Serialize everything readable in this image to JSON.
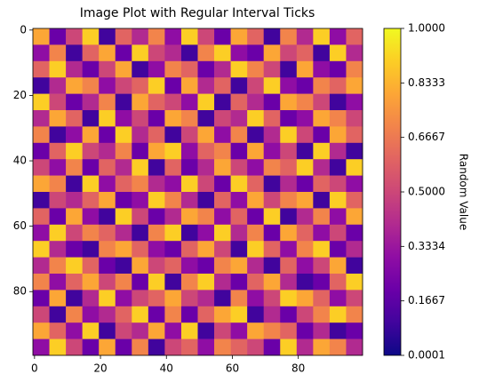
{
  "chart_data": {
    "type": "heatmap",
    "title": "Image Plot with Regular Interval Ticks",
    "colormap": "plasma",
    "colorbar_label": "Random Value",
    "xlim": [
      -0.5,
      99.5
    ],
    "ylim": [
      99.5,
      -0.5
    ],
    "xticks": [
      0,
      20,
      40,
      60,
      80
    ],
    "yticks": [
      0,
      20,
      40,
      60,
      80
    ],
    "clim": [
      0.0001,
      1.0
    ],
    "cticks": [
      0.0001,
      0.1667,
      0.3334,
      {
        "value": 0.5,
        "label": "0.5000"
      },
      0.6667,
      0.8333,
      {
        "value": 1.0,
        "label": "1.0000"
      }
    ],
    "z": [
      [
        0.8,
        0.2,
        0.5,
        0.9,
        0.1,
        0.6,
        0.4,
        0.7,
        0.3,
        0.9,
        0.5,
        0.2,
        0.8,
        0.6,
        0.1,
        0.7,
        0.4,
        0.9,
        0.3,
        0.6
      ],
      [
        0.3,
        0.7,
        0.1,
        0.6,
        0.8,
        0.2,
        0.9,
        0.5,
        0.4,
        0.1,
        0.7,
        0.9,
        0.3,
        0.2,
        0.8,
        0.5,
        0.6,
        0.1,
        0.9,
        0.4
      ],
      [
        0.6,
        0.9,
        0.4,
        0.2,
        0.5,
        0.8,
        0.1,
        0.3,
        0.7,
        0.6,
        0.2,
        0.4,
        0.9,
        0.7,
        0.5,
        0.1,
        0.8,
        0.3,
        0.2,
        0.7
      ],
      [
        0.1,
        0.4,
        0.8,
        0.7,
        0.3,
        0.5,
        0.6,
        0.9,
        0.2,
        0.8,
        0.4,
        0.6,
        0.1,
        0.5,
        0.9,
        0.3,
        0.2,
        0.7,
        0.6,
        0.8
      ],
      [
        0.9,
        0.5,
        0.2,
        0.4,
        0.7,
        0.1,
        0.8,
        0.6,
        0.5,
        0.3,
        0.9,
        0.1,
        0.6,
        0.4,
        0.2,
        0.8,
        0.7,
        0.5,
        0.1,
        0.3
      ],
      [
        0.4,
        0.8,
        0.6,
        0.1,
        0.9,
        0.3,
        0.5,
        0.2,
        0.8,
        0.7,
        0.1,
        0.5,
        0.4,
        0.9,
        0.6,
        0.2,
        0.3,
        0.8,
        0.7,
        0.5
      ],
      [
        0.7,
        0.1,
        0.3,
        0.8,
        0.2,
        0.9,
        0.4,
        0.6,
        0.1,
        0.5,
        0.8,
        0.3,
        0.7,
        0.1,
        0.4,
        0.9,
        0.5,
        0.2,
        0.8,
        0.6
      ],
      [
        0.2,
        0.6,
        0.9,
        0.5,
        0.4,
        0.7,
        0.2,
        0.8,
        0.9,
        0.3,
        0.6,
        0.7,
        0.2,
        0.8,
        0.3,
        0.5,
        0.1,
        0.9,
        0.4,
        0.1
      ],
      [
        0.5,
        0.3,
        0.7,
        0.2,
        0.6,
        0.4,
        0.9,
        0.1,
        0.6,
        0.2,
        0.4,
        0.8,
        0.5,
        0.3,
        0.7,
        0.6,
        0.9,
        0.4,
        0.1,
        0.9
      ],
      [
        0.8,
        0.7,
        0.1,
        0.9,
        0.3,
        0.6,
        0.7,
        0.4,
        0.3,
        0.9,
        0.5,
        0.2,
        0.9,
        0.6,
        0.1,
        0.4,
        0.2,
        0.6,
        0.5,
        0.3
      ],
      [
        0.1,
        0.5,
        0.4,
        0.6,
        0.8,
        0.2,
        0.3,
        0.9,
        0.7,
        0.4,
        0.1,
        0.6,
        0.3,
        0.8,
        0.5,
        0.7,
        0.8,
        0.1,
        0.9,
        0.6
      ],
      [
        0.6,
        0.2,
        0.8,
        0.3,
        0.1,
        0.9,
        0.5,
        0.2,
        0.4,
        0.8,
        0.7,
        0.3,
        0.6,
        0.2,
        0.9,
        0.1,
        0.4,
        0.7,
        0.3,
        0.8
      ],
      [
        0.3,
        0.9,
        0.5,
        0.7,
        0.6,
        0.4,
        0.1,
        0.7,
        0.9,
        0.1,
        0.3,
        0.9,
        0.4,
        0.7,
        0.2,
        0.8,
        0.6,
        0.3,
        0.5,
        0.2
      ],
      [
        0.9,
        0.4,
        0.2,
        0.1,
        0.7,
        0.8,
        0.6,
        0.3,
        0.2,
        0.6,
        0.8,
        0.5,
        0.1,
        0.9,
        0.6,
        0.3,
        0.7,
        0.9,
        0.2,
        0.4
      ],
      [
        0.4,
        0.7,
        0.9,
        0.6,
        0.2,
        0.1,
        0.8,
        0.5,
        0.6,
        0.3,
        0.2,
        0.7,
        0.8,
        0.4,
        0.1,
        0.6,
        0.3,
        0.5,
        0.8,
        0.1
      ],
      [
        0.7,
        0.3,
        0.6,
        0.8,
        0.5,
        0.7,
        0.2,
        0.9,
        0.1,
        0.7,
        0.9,
        0.4,
        0.2,
        0.6,
        0.8,
        0.4,
        0.1,
        0.2,
        0.6,
        0.9
      ],
      [
        0.2,
        0.8,
        0.1,
        0.4,
        0.9,
        0.3,
        0.5,
        0.6,
        0.8,
        0.5,
        0.4,
        0.1,
        0.7,
        0.3,
        0.5,
        0.9,
        0.8,
        0.6,
        0.3,
        0.5
      ],
      [
        0.5,
        0.1,
        0.7,
        0.3,
        0.4,
        0.6,
        0.9,
        0.2,
        0.7,
        0.2,
        0.6,
        0.8,
        0.9,
        0.1,
        0.4,
        0.2,
        0.5,
        0.7,
        0.9,
        0.7
      ],
      [
        0.8,
        0.6,
        0.3,
        0.9,
        0.1,
        0.5,
        0.4,
        0.8,
        0.3,
        0.9,
        0.1,
        0.5,
        0.3,
        0.8,
        0.7,
        0.6,
        0.2,
        0.4,
        0.1,
        0.2
      ],
      [
        0.3,
        0.9,
        0.5,
        0.2,
        0.8,
        0.2,
        0.7,
        0.1,
        0.5,
        0.6,
        0.3,
        0.7,
        0.6,
        0.5,
        0.2,
        0.9,
        0.4,
        0.8,
        0.7,
        0.4
      ]
    ]
  }
}
